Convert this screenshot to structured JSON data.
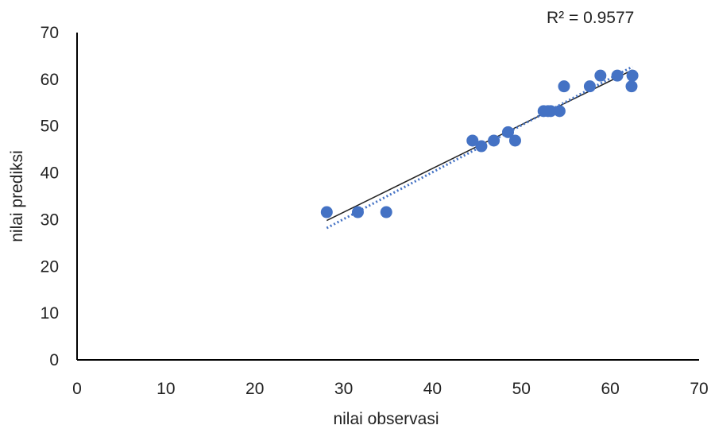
{
  "chart_data": {
    "type": "scatter",
    "xlabel": "nilai observasi",
    "ylabel": "nilai prediksi",
    "xlim": [
      0,
      70
    ],
    "ylim": [
      0,
      70
    ],
    "x_ticks": [
      0,
      10,
      20,
      30,
      40,
      50,
      60,
      70
    ],
    "y_ticks": [
      0,
      10,
      20,
      30,
      40,
      50,
      60,
      70
    ],
    "grid": false,
    "legend": "none",
    "annotation": "R² = 0.9577",
    "marker_color": "#4472C4",
    "points": [
      {
        "x": 28.1,
        "y": 31.6
      },
      {
        "x": 31.6,
        "y": 31.6
      },
      {
        "x": 34.8,
        "y": 31.6
      },
      {
        "x": 44.5,
        "y": 46.9
      },
      {
        "x": 45.5,
        "y": 45.7
      },
      {
        "x": 46.9,
        "y": 46.9
      },
      {
        "x": 48.5,
        "y": 48.7
      },
      {
        "x": 49.3,
        "y": 46.9
      },
      {
        "x": 52.5,
        "y": 53.2
      },
      {
        "x": 53.0,
        "y": 53.2
      },
      {
        "x": 53.3,
        "y": 53.2
      },
      {
        "x": 54.3,
        "y": 53.2
      },
      {
        "x": 54.8,
        "y": 58.5
      },
      {
        "x": 57.7,
        "y": 58.5
      },
      {
        "x": 58.9,
        "y": 60.8
      },
      {
        "x": 60.8,
        "y": 60.8
      },
      {
        "x": 62.5,
        "y": 60.8
      },
      {
        "x": 62.4,
        "y": 58.5
      }
    ],
    "trendlines": [
      {
        "style": "solid",
        "color": "#222222",
        "from": [
          28.1,
          29.8
        ],
        "to": [
          62.5,
          62.0
        ]
      },
      {
        "style": "dotted",
        "color": "#4472C4",
        "from": [
          28.1,
          28.2
        ],
        "to": [
          62.5,
          62.7
        ]
      }
    ]
  }
}
